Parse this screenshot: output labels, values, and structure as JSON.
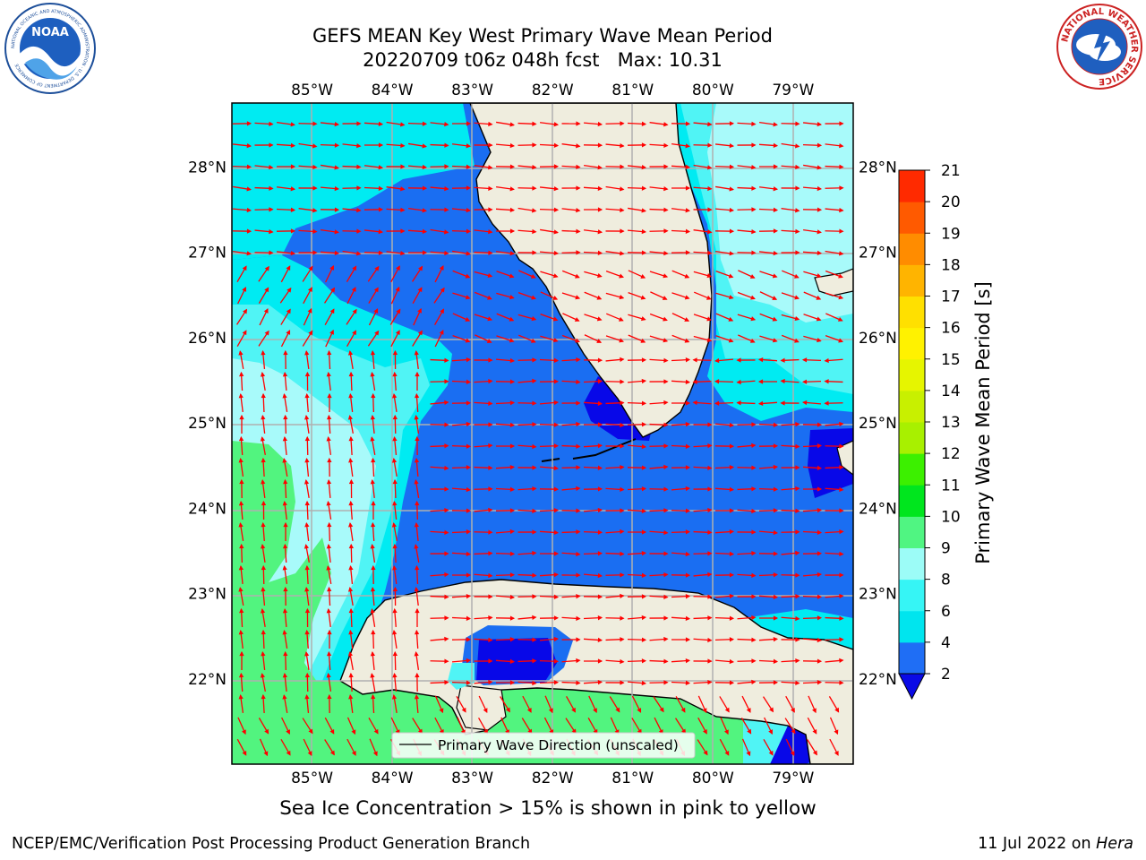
{
  "header": {
    "title_line1": "GEFS MEAN Key West Primary Wave Mean Period",
    "title_line2": "20220709 t06z 048h fcst   Max: 10.31"
  },
  "logos": {
    "left": "NOAA",
    "left_ring_text": "NATIONAL OCEANIC AND ATMOSPHERIC ADMINISTRATION · U.S. DEPARTMENT OF COMMERCE",
    "right_ring_text": "NATIONAL WEATHER SERVICE"
  },
  "chart_data": {
    "type": "heatmap",
    "map_region": "Key West / South Florida Straits",
    "lon_range": [
      -86,
      -78.25
    ],
    "lat_range": [
      21,
      28.75
    ],
    "lon_ticks": [
      "85°W",
      "84°W",
      "83°W",
      "82°W",
      "81°W",
      "80°W",
      "79°W"
    ],
    "lon_values": [
      -85,
      -84,
      -83,
      -82,
      -81,
      -80,
      -79
    ],
    "lat_ticks": [
      "22°N",
      "23°N",
      "24°N",
      "25°N",
      "26°N",
      "27°N",
      "28°N"
    ],
    "lat_values": [
      22,
      23,
      24,
      25,
      26,
      27,
      28
    ],
    "colorbar": {
      "label": "Primary Wave Mean Period [s]",
      "levels": [
        2,
        4,
        6,
        8,
        9,
        10,
        11,
        12,
        13,
        14,
        15,
        16,
        17,
        18,
        19,
        20,
        21
      ],
      "colors": [
        "#1f6ef5",
        "#00e5ee",
        "#36f5f5",
        "#9cfcf7",
        "#50f582",
        "#00e61e",
        "#3cf000",
        "#a8f000",
        "#c8f000",
        "#e6f500",
        "#fff200",
        "#ffe000",
        "#ffb400",
        "#ff8c00",
        "#ff5a00",
        "#ff2a00"
      ],
      "extend_min_color": "#0a0ae6"
    },
    "regions": {
      "land": "#efedde",
      "period_2_4": "#1a6ef2",
      "period_below_2": "#0808e8",
      "period_4_6": "#00ebf2",
      "period_6_8": "#50f4f5",
      "period_8_9": "#a8fafa",
      "period_9_10": "#52f47f"
    },
    "max_value": 10.31,
    "legend": "Primary Wave Direction (unscaled)",
    "legend_position": "lower-center",
    "grid": true,
    "arrow_color": "#ff0000"
  },
  "footer": {
    "caption": "Sea Ice Concentration > 15% is shown in pink to yellow",
    "left": "NCEP/EMC/Verification Post Processing Product Generation Branch",
    "right_date": "11 Jul 2022 on ",
    "right_machine": "Hera"
  }
}
